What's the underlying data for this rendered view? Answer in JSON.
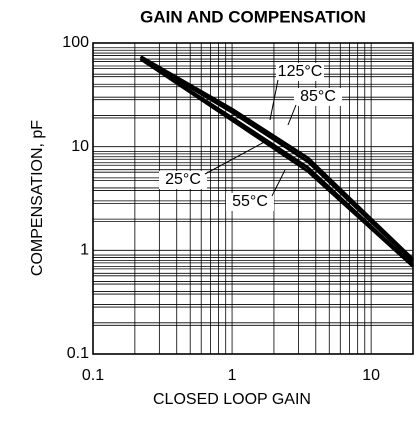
{
  "chart_data": {
    "type": "line",
    "title": "GAIN AND COMPENSATION",
    "x_label": "CLOSED LOOP GAIN",
    "y_label": "COMPENSATION, pF",
    "x": [
      0.22,
      1,
      3.5,
      20
    ],
    "series": [
      {
        "name": "125°C",
        "color": "#000000",
        "values": [
          74,
          23,
          7.8,
          0.82
        ]
      },
      {
        "name": "85°C",
        "color": "#000000",
        "values": [
          72,
          21.5,
          7.2,
          0.78
        ]
      },
      {
        "name": "25°C",
        "color": "#000000",
        "values": [
          70,
          19,
          6.3,
          0.72
        ]
      },
      {
        "name": "55°C",
        "color": "#000000",
        "values": [
          70,
          18,
          5.8,
          0.7
        ]
      }
    ],
    "xlim": [
      0.1,
      20
    ],
    "ylim": [
      0.1,
      100
    ],
    "xticks": [
      0.1,
      1,
      10
    ],
    "yticks": [
      0.1,
      1,
      10,
      100
    ],
    "xscale": "log",
    "yscale": "log",
    "grid": true,
    "minor_grid": true
  }
}
